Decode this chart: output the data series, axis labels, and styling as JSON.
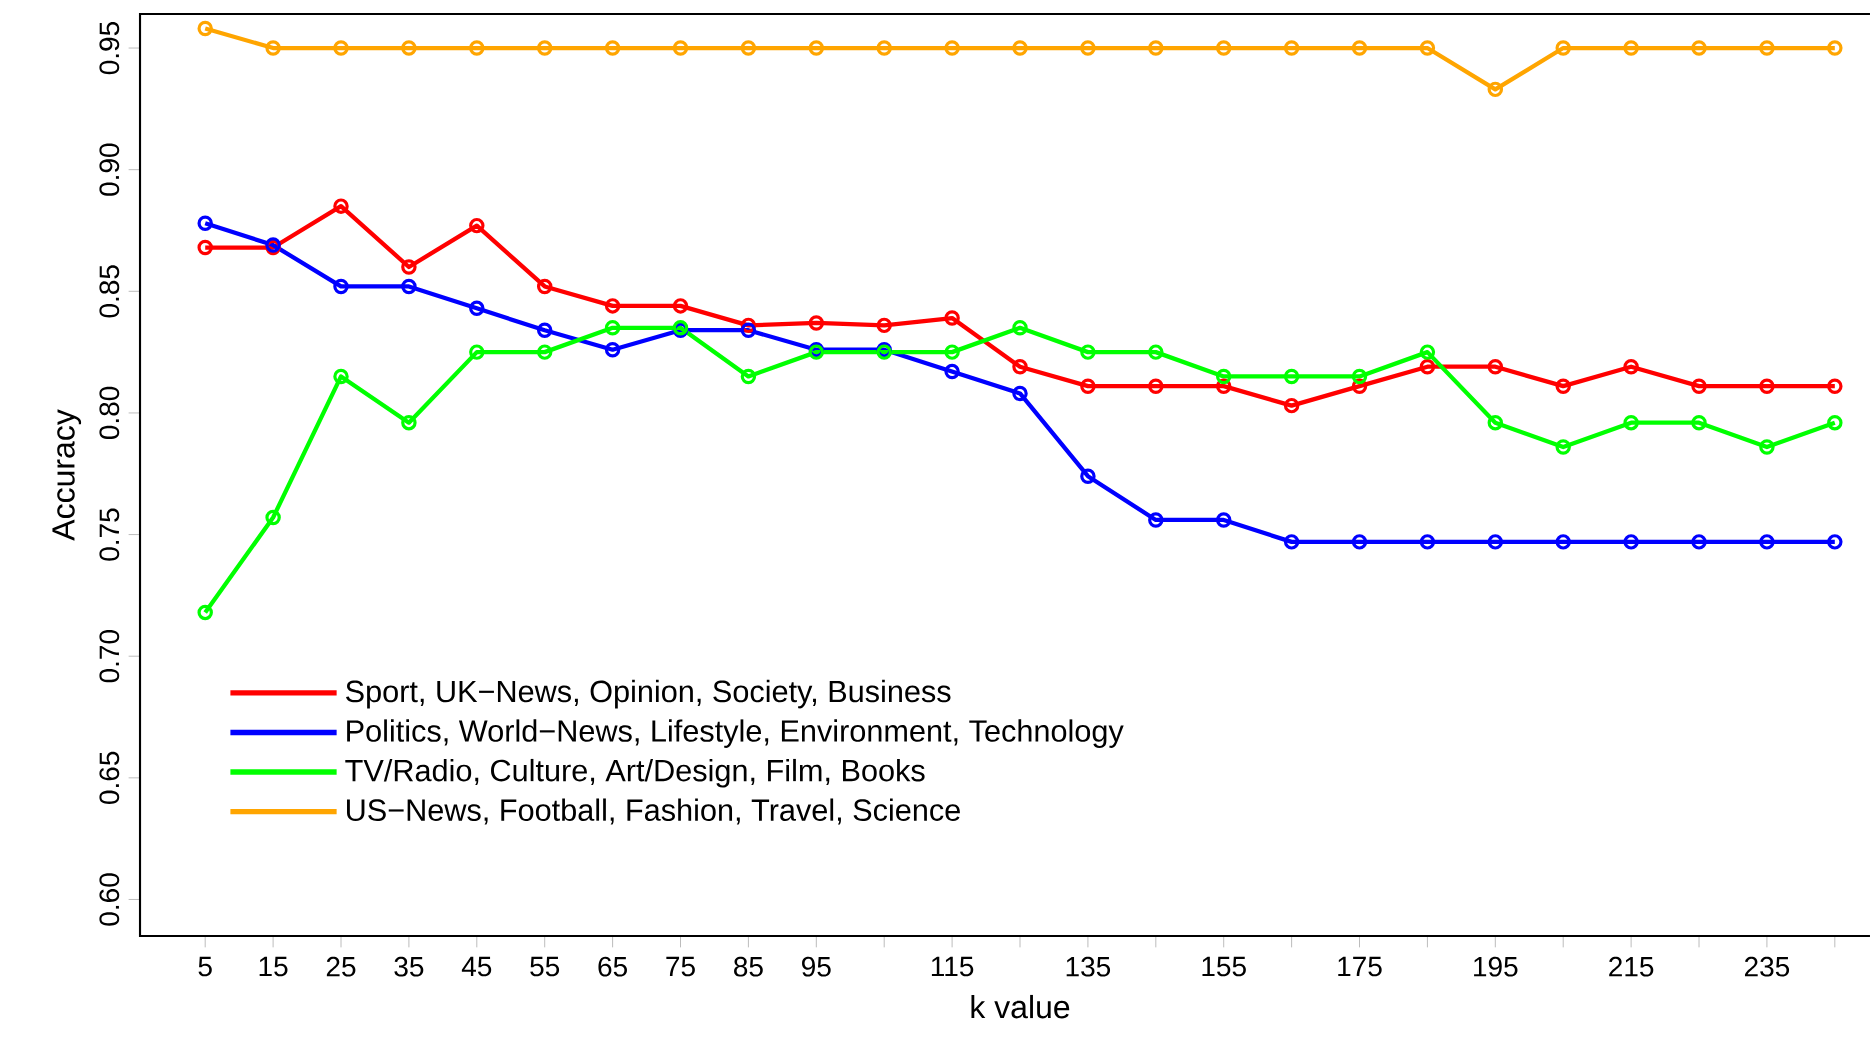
{
  "chart_data": {
    "type": "line",
    "xlabel": "k value",
    "ylabel": "Accuracy",
    "x": [
      5,
      15,
      25,
      35,
      45,
      55,
      65,
      75,
      85,
      95,
      105,
      115,
      125,
      135,
      145,
      155,
      165,
      175,
      185,
      195,
      205,
      215,
      225,
      235,
      245
    ],
    "series": [
      {
        "name": "Sport, UK−News, Opinion, Society, Business",
        "color": "#ff0000",
        "values": [
          0.868,
          0.868,
          0.885,
          0.86,
          0.877,
          0.852,
          0.844,
          0.844,
          0.836,
          0.837,
          0.836,
          0.839,
          0.819,
          0.811,
          0.811,
          0.811,
          0.803,
          0.811,
          0.819,
          0.819,
          0.811,
          0.819,
          0.811,
          0.811,
          0.811
        ]
      },
      {
        "name": "Politics, World−News, Lifestyle, Environment, Technology",
        "color": "#0000ff",
        "values": [
          0.878,
          0.869,
          0.852,
          0.852,
          0.843,
          0.834,
          0.826,
          0.834,
          0.834,
          0.826,
          0.826,
          0.817,
          0.808,
          0.774,
          0.756,
          0.756,
          0.747,
          0.747,
          0.747,
          0.747,
          0.747,
          0.747,
          0.747,
          0.747,
          0.747
        ]
      },
      {
        "name": "TV/Radio, Culture, Art/Design, Film, Books",
        "color": "#00ff00",
        "values": [
          0.718,
          0.757,
          0.815,
          0.796,
          0.825,
          0.825,
          0.835,
          0.835,
          0.815,
          0.825,
          0.825,
          0.825,
          0.835,
          0.825,
          0.825,
          0.815,
          0.815,
          0.815,
          0.825,
          0.796,
          0.786,
          0.796,
          0.796,
          0.786,
          0.796
        ]
      },
      {
        "name": "US−News, Football, Fashion, Travel, Science",
        "color": "#ffa500",
        "values": [
          0.958,
          0.95,
          0.95,
          0.95,
          0.95,
          0.95,
          0.95,
          0.95,
          0.95,
          0.95,
          0.95,
          0.95,
          0.95,
          0.95,
          0.95,
          0.95,
          0.95,
          0.95,
          0.95,
          0.933,
          0.95,
          0.95,
          0.95,
          0.95,
          0.95
        ]
      }
    ],
    "xlim": [
      -4.6,
      254.6
    ],
    "ylim": [
      0.585,
      0.964
    ],
    "xticks": [
      5,
      15,
      25,
      35,
      45,
      55,
      65,
      75,
      85,
      95,
      {
        "value": 105,
        "label": null
      },
      115,
      {
        "value": 125,
        "label": null
      },
      135,
      {
        "value": 145,
        "label": null
      },
      155,
      {
        "value": 165,
        "label": null
      },
      175,
      {
        "value": 185,
        "label": null
      },
      195,
      {
        "value": 205,
        "label": null
      },
      215,
      {
        "value": 225,
        "label": null
      },
      235,
      {
        "value": 245,
        "label": null
      }
    ],
    "yticks": [
      {
        "value": 0.6,
        "label": "0.60"
      },
      {
        "value": 0.65,
        "label": "0.65"
      },
      {
        "value": 0.7,
        "label": "0.70"
      },
      {
        "value": 0.75,
        "label": "0.75"
      },
      {
        "value": 0.8,
        "label": "0.80"
      },
      {
        "value": 0.85,
        "label": "0.85"
      },
      {
        "value": 0.9,
        "label": "0.90"
      },
      {
        "value": 0.95,
        "label": "0.95"
      }
    ],
    "marker": "circle",
    "line_style": "solid",
    "grid": false,
    "legend": "bottom left"
  }
}
